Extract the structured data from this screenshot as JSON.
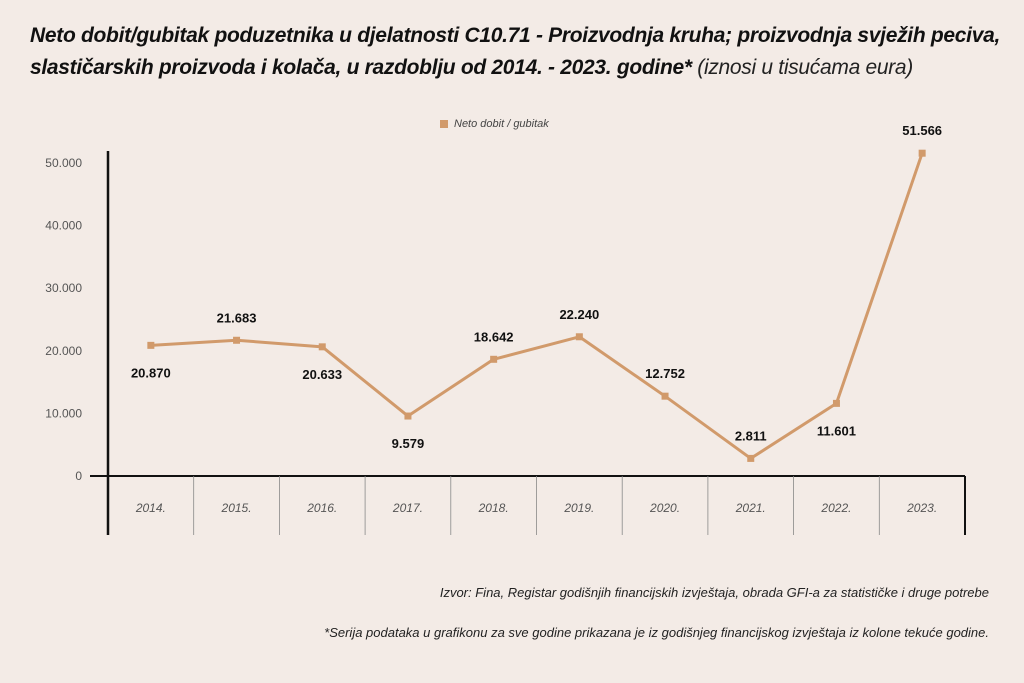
{
  "title_main": "Neto dobit/gubitak poduzetnika u djelatnosti C10.71 - Proizvodnja kruha; proizvodnja svježih peciva, slastičarskih proizvoda i kolača, u razdoblju od 2014. - 2023. godine*",
  "title_sub": "(iznosi u tisućama eura)",
  "source_note": "Izvor: Fina, Registar godišnjih financijskih izvještaja, obrada GFI-a za statističke i druge potrebe",
  "footnote": "*Serija podataka u grafikonu za sve godine prikazana je iz godišnjeg financijskog izvještaja iz kolone tekuće godine.",
  "colors": {
    "line": "#d19a6b",
    "axis": "#111111",
    "grid": "#888888",
    "background": "#f3ebe6"
  },
  "chart_data": {
    "type": "line",
    "title": "Neto dobit/gubitak poduzetnika u djelatnosti C10.71 - Proizvodnja kruha; proizvodnja svježih peciva, slastičarskih proizvoda i kolača, u razdoblju od 2014. - 2023. godine*",
    "subtitle": "(iznosi u tisućama eura)",
    "categories": [
      "2014.",
      "2015.",
      "2016.",
      "2017.",
      "2018.",
      "2019.",
      "2020.",
      "2021.",
      "2022.",
      "2023."
    ],
    "series": [
      {
        "name": "Neto dobit / gubitak",
        "values": [
          20870,
          21683,
          20633,
          9579,
          18642,
          22240,
          12752,
          2811,
          11601,
          51566
        ],
        "labels": [
          "20.870",
          "21.683",
          "20.633",
          "9.579",
          "18.642",
          "22.240",
          "12.752",
          "2.811",
          "11.601",
          "51.566"
        ]
      }
    ],
    "yticks": [
      0,
      10000,
      20000,
      30000,
      40000,
      50000
    ],
    "ytick_labels": [
      "0",
      "10.000",
      "20.000",
      "30.000",
      "40.000",
      "50.000"
    ],
    "ylim": [
      0,
      50000
    ],
    "xlabel": "",
    "ylabel": "",
    "legend": "top-center",
    "grid": false
  }
}
